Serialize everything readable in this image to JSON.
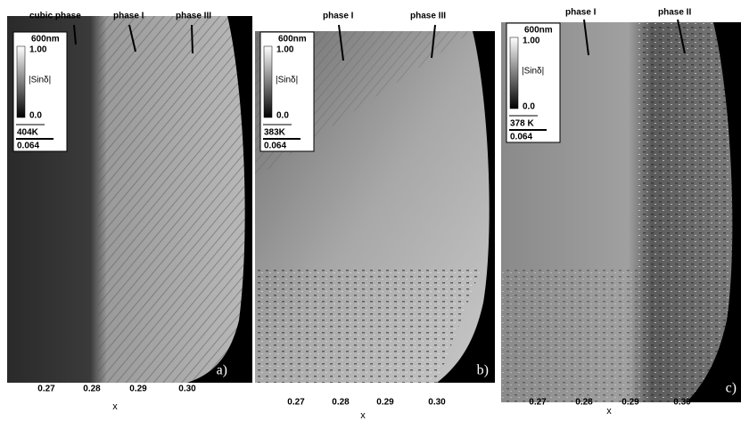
{
  "panels": [
    {
      "annotations": [
        "cubic phase",
        "phase I",
        "phase III"
      ],
      "legend": {
        "scale": "600nm",
        "max": "1.00",
        "quantity": "|Sinδ|",
        "min": "0.0",
        "temperature": "404K",
        "bar": "0.064"
      },
      "letter": "a)",
      "xticks": [
        "0.27",
        "0.28",
        "0.29",
        "0.30"
      ],
      "xlabel": "x"
    },
    {
      "annotations": [
        "phase I",
        "phase III"
      ],
      "legend": {
        "scale": "600nm",
        "max": "1.00",
        "quantity": "|Sinδ|",
        "min": "0.0",
        "temperature": "383K",
        "bar": "0.064"
      },
      "letter": "b)",
      "xticks": [
        "0.27",
        "0.28",
        "0.29",
        "0.30"
      ],
      "xlabel": "x"
    },
    {
      "annotations": [
        "phase I",
        "phase II"
      ],
      "legend": {
        "scale": "600nm",
        "max": "1.00",
        "quantity": "|Sinδ|",
        "min": "0.0",
        "temperature": "378 K",
        "bar": "0.064"
      },
      "letter": "c)",
      "xticks": [
        "0.27",
        "0.28",
        "0.29",
        "0.30"
      ],
      "xlabel": "x"
    }
  ]
}
